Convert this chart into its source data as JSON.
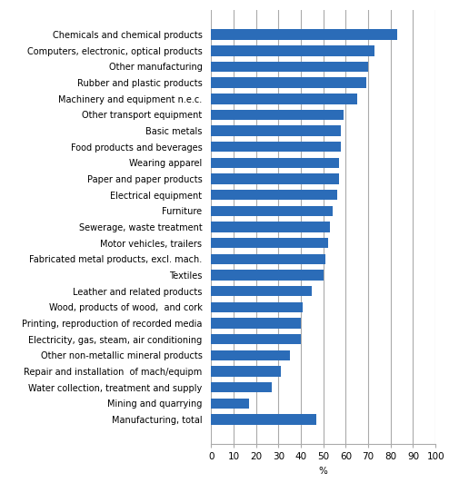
{
  "categories": [
    "Manufacturing, total",
    "Mining and quarrying",
    "Water collection, treatment and supply",
    "Repair and installation  of mach/equipm",
    "Other non-metallic mineral products",
    "Electricity, gas, steam, air conditioning",
    "Printing, reproduction of recorded media",
    "Wood, products of wood,  and cork",
    "Leather and related products",
    "Textiles",
    "Fabricated metal products, excl. mach.",
    "Motor vehicles, trailers",
    "Sewerage, waste treatment",
    "Furniture",
    "Electrical equipment",
    "Paper and paper products",
    "Wearing apparel",
    "Food products and beverages",
    "Basic metals",
    "Other transport equipment",
    "Machinery and equipment n.e.c.",
    "Rubber and plastic products",
    "Other manufacturing",
    "Computers, electronic, optical products",
    "Chemicals and chemical products"
  ],
  "values": [
    47,
    17,
    27,
    31,
    35,
    40,
    40,
    41,
    45,
    50,
    51,
    52,
    53,
    54,
    56,
    57,
    57,
    58,
    58,
    59,
    65,
    69,
    70,
    73,
    83
  ],
  "bar_color": "#2B6CB8",
  "xlabel": "%",
  "xlim": [
    0,
    100
  ],
  "xticks": [
    0,
    10,
    20,
    30,
    40,
    50,
    60,
    70,
    80,
    90,
    100
  ],
  "grid_color": "#AAAAAA",
  "bg_color": "#FFFFFF",
  "bar_height": 0.65,
  "label_fontsize": 7.0,
  "tick_fontsize": 7.5
}
